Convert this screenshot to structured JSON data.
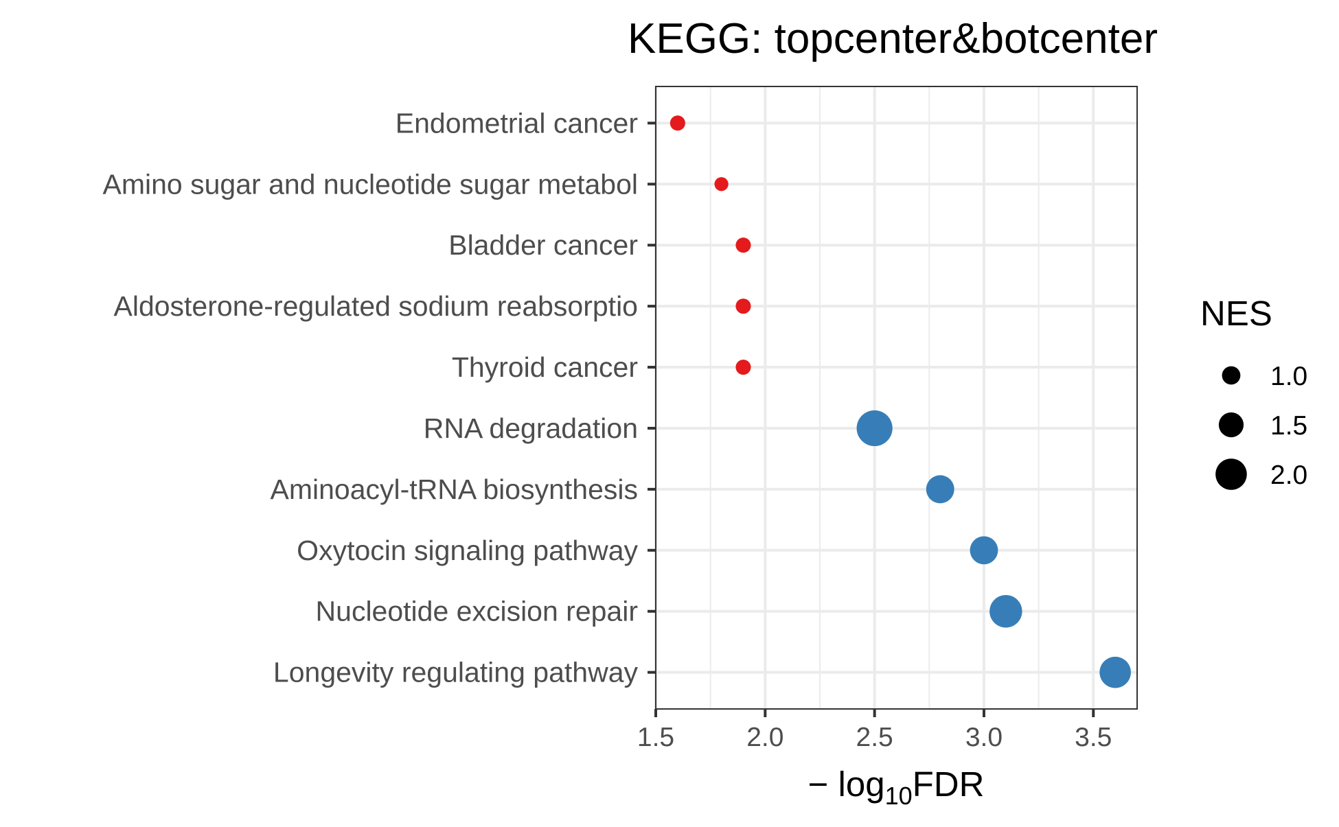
{
  "chart_data": {
    "type": "scatter",
    "title": "KEGG: topcenter&botcenter",
    "xlabel": {
      "prefix": "− log",
      "subscript": "10",
      "suffix": "FDR"
    },
    "ylabel": "",
    "xlim": [
      1.5,
      3.7
    ],
    "x_ticks": [
      1.5,
      2.0,
      2.5,
      3.0,
      3.5
    ],
    "x_tick_labels": [
      "1.5",
      "2.0",
      "2.5",
      "3.0",
      "3.5"
    ],
    "grid": true,
    "categories": [
      "Endometrial cancer",
      "Amino sugar and nucleotide sugar metabol",
      "Bladder cancer",
      "Aldosterone-regulated sodium reabsorptio",
      "Thyroid cancer",
      "RNA degradation",
      "Aminoacyl-tRNA biosynthesis",
      "Oxytocin signaling pathway",
      "Nucleotide excision repair",
      "Longevity regulating pathway"
    ],
    "points": [
      {
        "category": "Endometrial cancer",
        "x": 1.6,
        "nes": 0.75,
        "color": "#e41a1c"
      },
      {
        "category": "Amino sugar and nucleotide sugar metabol",
        "x": 1.8,
        "nes": 0.65,
        "color": "#e41a1c"
      },
      {
        "category": "Bladder cancer",
        "x": 1.9,
        "nes": 0.75,
        "color": "#e41a1c"
      },
      {
        "category": "Aldosterone-regulated sodium reabsorptio",
        "x": 1.9,
        "nes": 0.75,
        "color": "#e41a1c"
      },
      {
        "category": "Thyroid cancer",
        "x": 1.9,
        "nes": 0.75,
        "color": "#e41a1c"
      },
      {
        "category": "RNA degradation",
        "x": 2.5,
        "nes": 2.35,
        "color": "#377eb8"
      },
      {
        "category": "Aminoacyl-tRNA biosynthesis",
        "x": 2.8,
        "nes": 1.75,
        "color": "#377eb8"
      },
      {
        "category": "Oxytocin signaling pathway",
        "x": 3.0,
        "nes": 1.75,
        "color": "#377eb8"
      },
      {
        "category": "Nucleotide excision repair",
        "x": 3.1,
        "nes": 2.1,
        "color": "#377eb8"
      },
      {
        "category": "Longevity regulating pathway",
        "x": 3.6,
        "nes": 2.0,
        "color": "#377eb8"
      }
    ],
    "size_legend": {
      "title": "NES",
      "placement": "right",
      "color": "#000000",
      "entries": [
        {
          "label": "1.0",
          "value": 1.0
        },
        {
          "label": "1.5",
          "value": 1.5
        },
        {
          "label": "2.0",
          "value": 2.0
        }
      ]
    }
  }
}
